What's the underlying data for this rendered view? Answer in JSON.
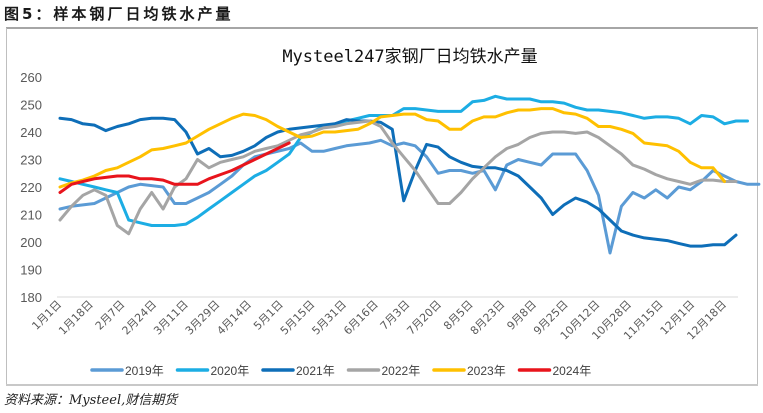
{
  "figure": {
    "label": "图5：样本钢厂日均铁水产量",
    "source": "资料来源：Mysteel,财信期货"
  },
  "chart_data": {
    "type": "line",
    "title": "Mysteel247家钢厂日均铁水产量",
    "xlabel": "",
    "ylabel": "",
    "ylim": [
      180,
      260
    ],
    "yticks": [
      180,
      190,
      200,
      210,
      220,
      230,
      240,
      250,
      260
    ],
    "grid": false,
    "legend_position": "bottom",
    "x_tick_labels": [
      "1月1日",
      "1月18日",
      "2月7日",
      "2月24日",
      "3月11日",
      "3月29日",
      "4月14日",
      "5月1日",
      "5月15日",
      "5月31日",
      "6月16日",
      "7月3日",
      "7月20日",
      "8月5日",
      "8月23日",
      "9月8日",
      "9月25日",
      "10月12日",
      "10月28日",
      "11月15日",
      "12月1日",
      "12月18日"
    ],
    "series": [
      {
        "name": "2019年",
        "color": "#5b9bd5",
        "values": [
          212,
          213,
          213.5,
          214,
          216,
          218,
          220,
          221,
          220.5,
          220,
          214,
          214,
          216,
          218,
          221,
          224,
          228,
          231,
          232,
          233,
          234,
          236,
          233,
          233,
          234,
          235,
          235.5,
          236,
          237,
          235,
          236,
          235,
          231,
          225,
          226,
          226,
          225,
          226,
          219,
          228,
          230,
          229,
          228,
          232,
          232,
          232,
          226,
          217,
          196,
          213,
          218,
          216,
          219,
          216,
          220,
          219,
          222,
          226,
          224,
          222,
          221,
          221
        ]
      },
      {
        "name": "2020年",
        "color": "#1cade4",
        "values": [
          223,
          222,
          221,
          220,
          219,
          218,
          208,
          207,
          206,
          206,
          206,
          206.5,
          209,
          212,
          215,
          218,
          221,
          224,
          226,
          229,
          232,
          238,
          240,
          242,
          243,
          244,
          245,
          246,
          246,
          246,
          248.5,
          248.5,
          248,
          247.5,
          247.5,
          247.5,
          251,
          251.5,
          253,
          252,
          252,
          252,
          251,
          251,
          250.5,
          249,
          248,
          248,
          247.5,
          247,
          246,
          245,
          245.5,
          245.5,
          245,
          243,
          246,
          245.5,
          243,
          244,
          244
        ]
      },
      {
        "name": "2021年",
        "color": "#0e6eb8",
        "values": [
          245,
          244.5,
          243,
          242.5,
          240.5,
          242,
          243,
          244.5,
          245,
          245,
          244.5,
          240,
          232,
          234,
          231,
          231.5,
          233,
          235,
          238,
          240,
          241,
          241.5,
          242,
          242.5,
          243,
          244.5,
          244,
          244,
          243.5,
          241,
          215,
          226,
          235.5,
          234.5,
          231,
          229,
          227.5,
          227,
          227,
          226,
          224,
          220,
          216,
          210,
          213.5,
          216,
          214.5,
          212,
          208,
          204,
          202.5,
          201.5,
          201,
          200.5,
          199.5,
          198.5,
          198.5,
          199,
          199,
          202.5
        ]
      },
      {
        "name": "2022年",
        "color": "#a5a5a5",
        "values": [
          208,
          213,
          217,
          219,
          217,
          206,
          203,
          212,
          218,
          212,
          220,
          223,
          230,
          227,
          229,
          230,
          231,
          233,
          234,
          235,
          237,
          239,
          240,
          241.5,
          242,
          243,
          243.5,
          244,
          242,
          236,
          231,
          226,
          220,
          214,
          214,
          218,
          223,
          227,
          231,
          234,
          235.5,
          238,
          239.5,
          240,
          240,
          239.5,
          240,
          238,
          235,
          232,
          228,
          226.5,
          224.5,
          223,
          222,
          221,
          222.5,
          222.5,
          222,
          222
        ]
      },
      {
        "name": "2023年",
        "color": "#ffc000",
        "values": [
          220,
          221.5,
          222.5,
          224,
          226,
          227,
          229,
          231,
          233.5,
          234,
          235,
          236,
          238.5,
          241,
          243,
          245,
          246.5,
          246,
          244.5,
          242,
          240,
          238,
          238.5,
          240,
          240,
          240.5,
          241,
          243,
          245.5,
          246,
          246.5,
          246.5,
          244.5,
          244,
          241,
          241,
          244,
          245.5,
          245.5,
          247,
          248,
          248,
          248.5,
          248.5,
          247,
          246.5,
          245,
          242,
          242,
          241,
          239.5,
          236,
          235.5,
          235,
          233,
          229,
          227,
          227,
          222
        ]
      },
      {
        "name": "2024年",
        "color": "#e8141c",
        "values": [
          218,
          221,
          222,
          223,
          223.5,
          224,
          224,
          223,
          223,
          222.5,
          221,
          221,
          221,
          223,
          224.5,
          226,
          228,
          230,
          232,
          234,
          236
        ]
      }
    ]
  }
}
